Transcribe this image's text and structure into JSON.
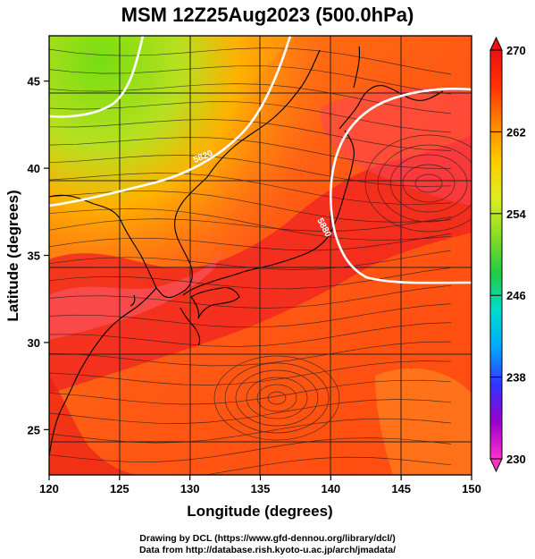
{
  "title": "MSM 12Z25Aug2023 (500.0hPa)",
  "x_axis": {
    "label": "Longitude (degrees)",
    "range": [
      120,
      150
    ],
    "ticks": [
      120,
      125,
      130,
      135,
      140,
      145,
      150
    ]
  },
  "y_axis": {
    "label": "Latitude  (degrees)",
    "range": [
      22.4,
      47.6
    ],
    "ticks": [
      25,
      30,
      35,
      40,
      45
    ]
  },
  "colorbar": {
    "min": 230,
    "max": 270,
    "tick_labels": [
      "270",
      "262",
      "254",
      "246",
      "238",
      "230"
    ],
    "palette": [
      "#ff33cc",
      "#9900cc",
      "#3333ff",
      "#00aaff",
      "#00ddcc",
      "#22cc44",
      "#88dd22",
      "#ddee22",
      "#ffcc00",
      "#ff8800",
      "#ff3300",
      "#ee1111"
    ]
  },
  "contour_labels": [
    "5820",
    "5880"
  ],
  "features": {
    "grid": true,
    "coastlines": true,
    "field_colors": {
      "green_cold": "#88dd11",
      "orange": "#ff7a1a",
      "red_hot": "#f22222",
      "pink_band": "#ff5566"
    }
  },
  "credits": {
    "line1": "Drawing by DCL (https://www.gfd-dennou.org/library/dcl/)",
    "line2": "Data from http://database.rish.kyoto-u.ac.jp/arch/jmadata/"
  }
}
